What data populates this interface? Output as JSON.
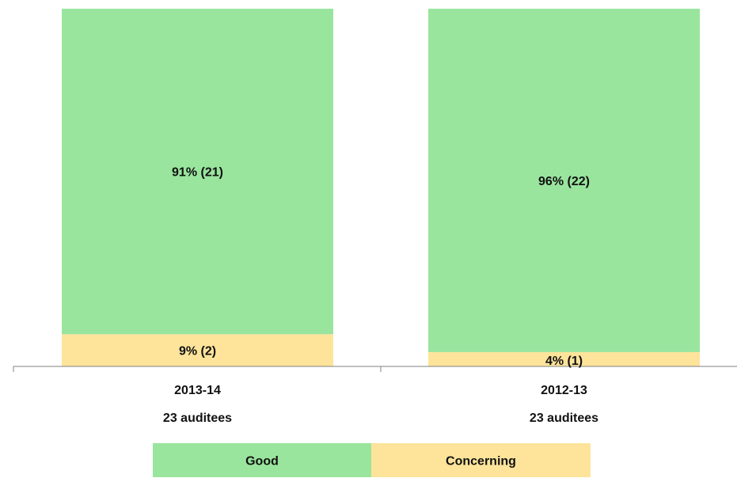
{
  "chart_data": {
    "type": "bar",
    "stacked": true,
    "normalized_percent": true,
    "categories": [
      "2013-14",
      "2012-13"
    ],
    "category_sublabels": [
      "23 auditees",
      "23 auditees"
    ],
    "series": [
      {
        "name": "Good",
        "color": "#99e59e",
        "values": [
          91,
          96
        ],
        "counts": [
          21,
          22
        ],
        "data_labels": [
          "91% (21)",
          "96% (22)"
        ]
      },
      {
        "name": "Concerning",
        "color": "#fde49a",
        "values": [
          9,
          4
        ],
        "counts": [
          2,
          1
        ],
        "data_labels": [
          "9% (2)",
          "4% (1)"
        ]
      }
    ],
    "ylim": [
      0,
      100
    ],
    "grid": false,
    "legend_position": "bottom",
    "title": "",
    "xlabel": "",
    "ylabel": ""
  }
}
